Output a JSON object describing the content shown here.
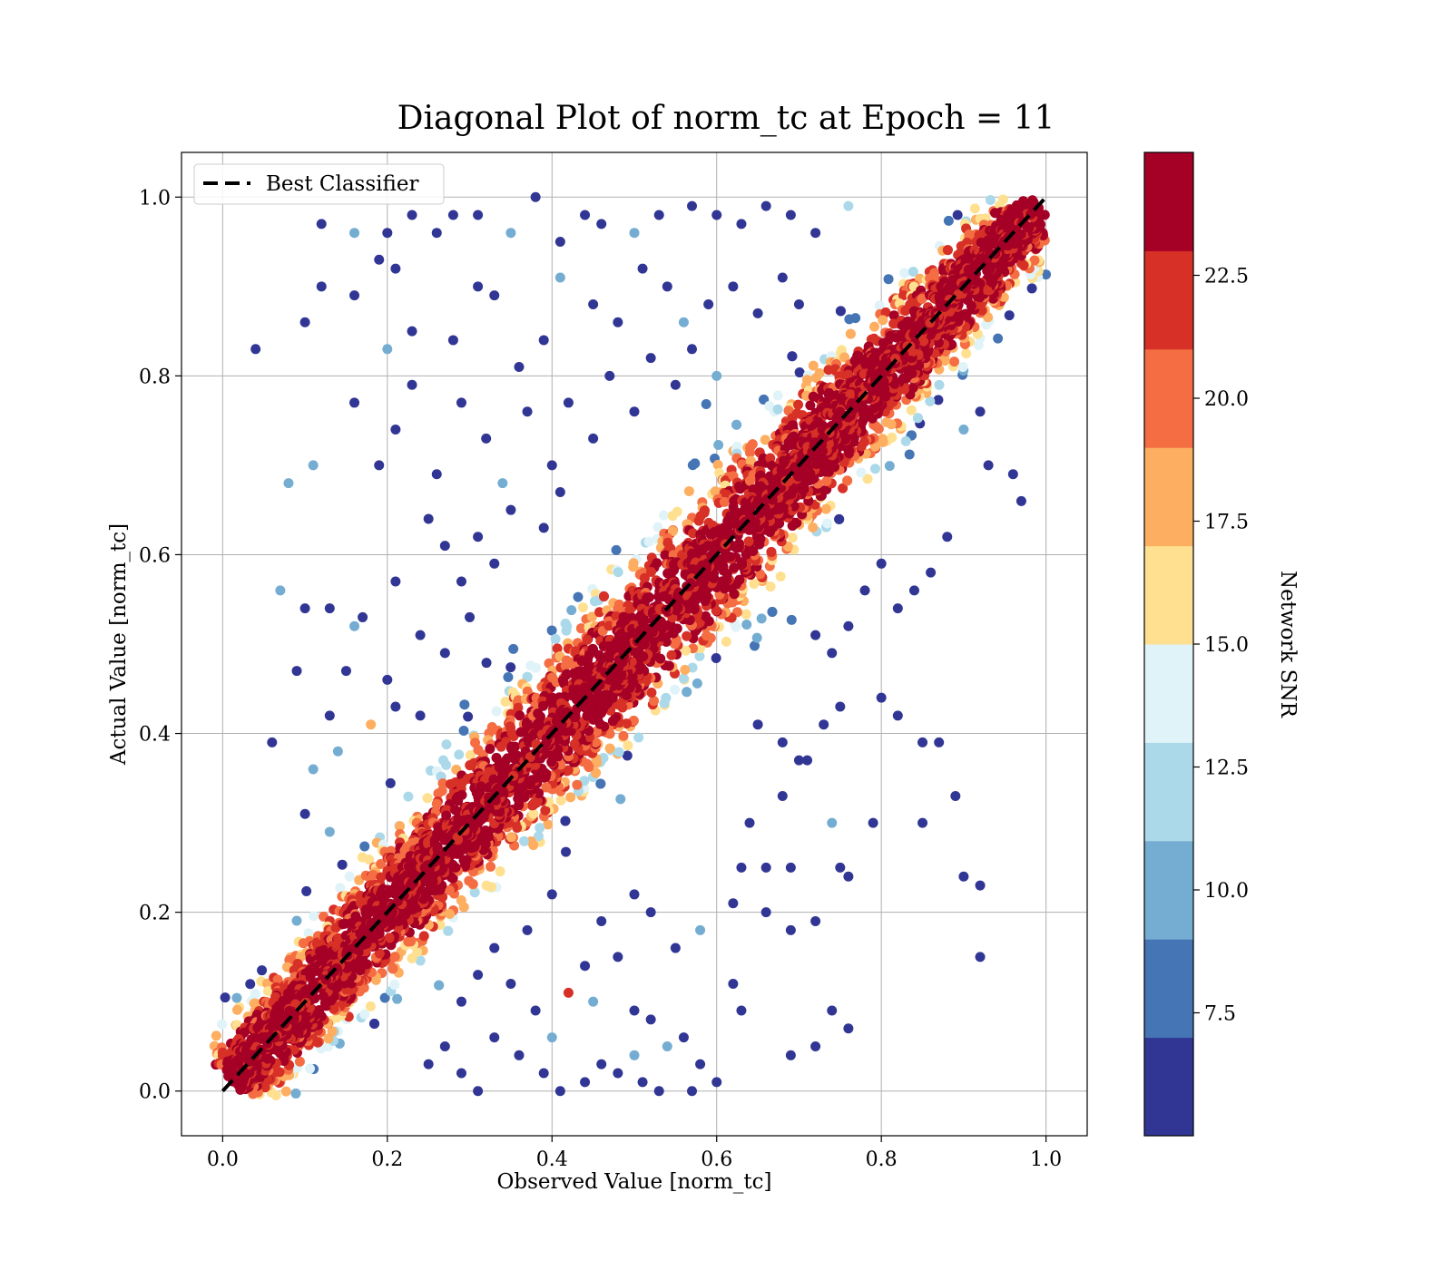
{
  "chart_data": {
    "type": "scatter",
    "title": "Diagonal Plot of norm_tc at Epoch = 11",
    "xlabel": "Observed Value [norm_tc]",
    "ylabel": "Actual Value [norm_tc]",
    "xlim": [
      -0.05,
      1.05
    ],
    "ylim": [
      -0.05,
      1.05
    ],
    "x_ticks": [
      "0.0",
      "0.2",
      "0.4",
      "0.6",
      "0.8",
      "1.0"
    ],
    "y_ticks": [
      "0.0",
      "0.2",
      "0.4",
      "0.6",
      "0.8",
      "1.0"
    ],
    "grid": true,
    "legend": {
      "placement": "top-left",
      "entries": [
        "Best Classifier"
      ]
    },
    "reference_line": {
      "name": "Best Classifier",
      "style": "dashed",
      "color": "#000000",
      "from": [
        0,
        0
      ],
      "to": [
        1,
        1
      ]
    },
    "colorbar": {
      "label": "Network SNR",
      "range": [
        5.0,
        25.0
      ],
      "ticks": [
        "7.5",
        "10.0",
        "12.5",
        "15.0",
        "17.5",
        "20.0",
        "22.5"
      ],
      "tick_values": [
        7.5,
        10.0,
        12.5,
        15.0,
        17.5,
        20.0,
        22.5
      ],
      "colors": [
        "#313695",
        "#4575b4",
        "#74add1",
        "#abd9e9",
        "#e0f3f8",
        "#fee090",
        "#fdae61",
        "#f46d43",
        "#d73027",
        "#a50026"
      ]
    },
    "points": [
      [
        0.04,
        0.83,
        5.5
      ],
      [
        0.1,
        0.86,
        5.5
      ],
      [
        0.12,
        0.97,
        5.5
      ],
      [
        0.12,
        0.9,
        5.5
      ],
      [
        0.08,
        0.68,
        10.5
      ],
      [
        0.11,
        0.7,
        10.5
      ],
      [
        0.16,
        0.96,
        10.5
      ],
      [
        0.16,
        0.89,
        5.5
      ],
      [
        0.19,
        0.93,
        5.5
      ],
      [
        0.2,
        0.96,
        5.5
      ],
      [
        0.21,
        0.92,
        5.5
      ],
      [
        0.23,
        0.98,
        5.5
      ],
      [
        0.26,
        0.96,
        5.5
      ],
      [
        0.28,
        0.98,
        5.5
      ],
      [
        0.31,
        0.98,
        5.5
      ],
      [
        0.35,
        0.96,
        10.5
      ],
      [
        0.38,
        1.0,
        5.5
      ],
      [
        0.41,
        0.95,
        5.5
      ],
      [
        0.44,
        0.98,
        5.5
      ],
      [
        0.46,
        0.97,
        5.5
      ],
      [
        0.5,
        0.96,
        10.5
      ],
      [
        0.53,
        0.98,
        5.5
      ],
      [
        0.57,
        0.99,
        5.5
      ],
      [
        0.6,
        0.98,
        5.5
      ],
      [
        0.63,
        0.97,
        5.5
      ],
      [
        0.66,
        0.99,
        5.5
      ],
      [
        0.69,
        0.98,
        5.5
      ],
      [
        0.72,
        0.96,
        5.5
      ],
      [
        0.76,
        0.99,
        11.5
      ],
      [
        0.2,
        0.83,
        10.5
      ],
      [
        0.23,
        0.85,
        5.5
      ],
      [
        0.28,
        0.84,
        5.5
      ],
      [
        0.31,
        0.9,
        5.5
      ],
      [
        0.33,
        0.89,
        5.5
      ],
      [
        0.36,
        0.81,
        5.5
      ],
      [
        0.39,
        0.84,
        5.5
      ],
      [
        0.41,
        0.91,
        10.5
      ],
      [
        0.45,
        0.88,
        5.5
      ],
      [
        0.48,
        0.86,
        5.5
      ],
      [
        0.51,
        0.92,
        5.5
      ],
      [
        0.54,
        0.9,
        5.5
      ],
      [
        0.56,
        0.86,
        10.5
      ],
      [
        0.59,
        0.88,
        5.5
      ],
      [
        0.62,
        0.9,
        5.5
      ],
      [
        0.65,
        0.87,
        5.5
      ],
      [
        0.68,
        0.91,
        5.5
      ],
      [
        0.7,
        0.88,
        5.5
      ],
      [
        0.16,
        0.77,
        5.5
      ],
      [
        0.19,
        0.7,
        5.5
      ],
      [
        0.21,
        0.74,
        5.5
      ],
      [
        0.23,
        0.79,
        5.5
      ],
      [
        0.26,
        0.69,
        5.5
      ],
      [
        0.29,
        0.77,
        5.5
      ],
      [
        0.32,
        0.73,
        5.5
      ],
      [
        0.34,
        0.68,
        10.5
      ],
      [
        0.37,
        0.76,
        5.5
      ],
      [
        0.4,
        0.7,
        5.5
      ],
      [
        0.42,
        0.77,
        5.5
      ],
      [
        0.45,
        0.73,
        5.5
      ],
      [
        0.47,
        0.8,
        5.5
      ],
      [
        0.5,
        0.76,
        5.5
      ],
      [
        0.52,
        0.82,
        5.5
      ],
      [
        0.55,
        0.79,
        5.5
      ],
      [
        0.57,
        0.83,
        5.5
      ],
      [
        0.6,
        0.8,
        10.5
      ],
      [
        0.07,
        0.56,
        10.5
      ],
      [
        0.1,
        0.54,
        5.5
      ],
      [
        0.13,
        0.54,
        5.5
      ],
      [
        0.16,
        0.52,
        10.5
      ],
      [
        0.17,
        0.53,
        5.5
      ],
      [
        0.21,
        0.57,
        5.5
      ],
      [
        0.25,
        0.64,
        5.5
      ],
      [
        0.27,
        0.61,
        5.5
      ],
      [
        0.29,
        0.57,
        5.5
      ],
      [
        0.31,
        0.62,
        5.5
      ],
      [
        0.33,
        0.59,
        5.5
      ],
      [
        0.35,
        0.65,
        5.5
      ],
      [
        0.39,
        0.63,
        5.5
      ],
      [
        0.41,
        0.67,
        5.5
      ],
      [
        0.09,
        0.47,
        5.5
      ],
      [
        0.15,
        0.47,
        5.5
      ],
      [
        0.2,
        0.46,
        5.5
      ],
      [
        0.24,
        0.51,
        5.5
      ],
      [
        0.27,
        0.49,
        5.5
      ],
      [
        0.3,
        0.53,
        5.5
      ],
      [
        0.06,
        0.39,
        5.5
      ],
      [
        0.11,
        0.36,
        10.5
      ],
      [
        0.13,
        0.42,
        5.5
      ],
      [
        0.14,
        0.38,
        10.5
      ],
      [
        0.18,
        0.41,
        17.0
      ],
      [
        0.21,
        0.43,
        5.5
      ],
      [
        0.24,
        0.42,
        5.5
      ],
      [
        0.1,
        0.31,
        5.5
      ],
      [
        0.13,
        0.29,
        10.5
      ],
      [
        0.65,
        0.41,
        5.5
      ],
      [
        0.68,
        0.39,
        5.5
      ],
      [
        0.71,
        0.37,
        5.5
      ],
      [
        0.73,
        0.41,
        5.5
      ],
      [
        0.75,
        0.43,
        5.5
      ],
      [
        0.8,
        0.44,
        5.5
      ],
      [
        0.82,
        0.42,
        5.5
      ],
      [
        0.85,
        0.39,
        5.5
      ],
      [
        0.68,
        0.33,
        5.5
      ],
      [
        0.7,
        0.37,
        5.5
      ],
      [
        0.64,
        0.3,
        5.5
      ],
      [
        0.74,
        0.3,
        10.5
      ],
      [
        0.79,
        0.3,
        5.5
      ],
      [
        0.85,
        0.3,
        5.5
      ],
      [
        0.89,
        0.33,
        5.5
      ],
      [
        0.63,
        0.25,
        5.5
      ],
      [
        0.66,
        0.25,
        5.5
      ],
      [
        0.69,
        0.25,
        5.5
      ],
      [
        0.75,
        0.25,
        5.5
      ],
      [
        0.9,
        0.24,
        5.5
      ],
      [
        0.92,
        0.23,
        5.5
      ],
      [
        0.62,
        0.21,
        5.5
      ],
      [
        0.66,
        0.2,
        5.5
      ],
      [
        0.69,
        0.18,
        5.5
      ],
      [
        0.72,
        0.19,
        5.5
      ],
      [
        0.76,
        0.24,
        5.5
      ],
      [
        0.92,
        0.15,
        5.5
      ],
      [
        0.55,
        0.16,
        5.5
      ],
      [
        0.58,
        0.18,
        10.5
      ],
      [
        0.62,
        0.12,
        5.5
      ],
      [
        0.63,
        0.09,
        5.5
      ],
      [
        0.69,
        0.04,
        5.5
      ],
      [
        0.72,
        0.05,
        5.5
      ],
      [
        0.74,
        0.09,
        5.5
      ],
      [
        0.76,
        0.07,
        5.5
      ],
      [
        0.46,
        0.19,
        5.5
      ],
      [
        0.5,
        0.22,
        5.5
      ],
      [
        0.52,
        0.2,
        5.5
      ],
      [
        0.48,
        0.15,
        5.5
      ],
      [
        0.45,
        0.1,
        10.5
      ],
      [
        0.5,
        0.09,
        5.5
      ],
      [
        0.52,
        0.08,
        5.5
      ],
      [
        0.54,
        0.05,
        10.5
      ],
      [
        0.56,
        0.06,
        5.5
      ],
      [
        0.58,
        0.03,
        5.5
      ],
      [
        0.46,
        0.03,
        5.5
      ],
      [
        0.48,
        0.02,
        5.5
      ],
      [
        0.51,
        0.01,
        5.5
      ],
      [
        0.53,
        0.0,
        5.5
      ],
      [
        0.57,
        0.0,
        5.5
      ],
      [
        0.6,
        0.01,
        5.5
      ],
      [
        0.5,
        0.04,
        10.5
      ],
      [
        0.44,
        0.01,
        5.5
      ],
      [
        0.41,
        0.0,
        5.5
      ],
      [
        0.39,
        0.02,
        5.5
      ],
      [
        0.36,
        0.04,
        5.5
      ],
      [
        0.33,
        0.06,
        5.5
      ],
      [
        0.31,
        0.0,
        5.5
      ],
      [
        0.29,
        0.02,
        5.5
      ],
      [
        0.27,
        0.05,
        5.5
      ],
      [
        0.25,
        0.03,
        5.5
      ],
      [
        0.42,
        0.11,
        21.0
      ],
      [
        0.4,
        0.06,
        10.5
      ],
      [
        0.38,
        0.09,
        5.5
      ],
      [
        0.35,
        0.12,
        5.5
      ],
      [
        0.33,
        0.16,
        5.5
      ],
      [
        0.31,
        0.13,
        5.5
      ],
      [
        0.29,
        0.1,
        5.5
      ],
      [
        0.44,
        0.14,
        5.5
      ],
      [
        0.37,
        0.18,
        5.5
      ],
      [
        0.4,
        0.22,
        5.5
      ],
      [
        0.86,
        0.58,
        5.5
      ],
      [
        0.84,
        0.56,
        5.5
      ],
      [
        0.82,
        0.54,
        5.5
      ],
      [
        0.88,
        0.62,
        5.5
      ],
      [
        0.87,
        0.39,
        5.5
      ],
      [
        0.93,
        0.7,
        5.5
      ],
      [
        0.96,
        0.69,
        5.5
      ],
      [
        0.97,
        0.66,
        5.5
      ],
      [
        0.9,
        0.74,
        10.5
      ],
      [
        0.92,
        0.76,
        5.5
      ],
      [
        0.8,
        0.59,
        5.5
      ],
      [
        0.78,
        0.56,
        5.5
      ],
      [
        0.76,
        0.52,
        5.5
      ],
      [
        0.74,
        0.49,
        5.5
      ],
      [
        0.72,
        0.51,
        5.5
      ]
    ]
  }
}
